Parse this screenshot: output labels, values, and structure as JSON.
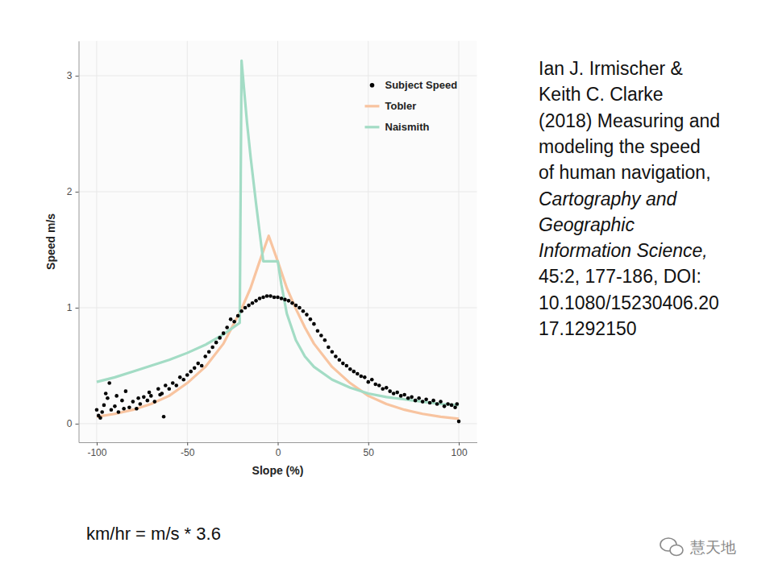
{
  "chart_data": {
    "type": "scatter",
    "x_label": "Slope (%)",
    "y_label": "Speed m/s",
    "xlim": [
      -110,
      110
    ],
    "ylim": [
      -0.16,
      3.3
    ],
    "xticks": [
      -100,
      -50,
      0,
      50,
      100
    ],
    "yticks": [
      0,
      1,
      2,
      3
    ],
    "grid": true,
    "legend": "top-right",
    "series": [
      {
        "name": "Subject Speed",
        "type": "scatter",
        "marker": "circle",
        "color": "#000000",
        "x": [
          -100,
          -99,
          -98,
          -97,
          -96,
          -95,
          -94,
          -93,
          -92,
          -90,
          -89,
          -88,
          -86,
          -85,
          -84,
          -82,
          -80,
          -78,
          -77,
          -76,
          -74,
          -72,
          -71,
          -70,
          -68,
          -66,
          -65,
          -64,
          -63,
          -62,
          -60,
          -58,
          -56,
          -54,
          -52,
          -50,
          -48,
          -46,
          -44,
          -42,
          -40,
          -38,
          -36,
          -34,
          -32,
          -30,
          -28,
          -26,
          -24,
          -22,
          -20,
          -18,
          -16,
          -14,
          -12,
          -10,
          -8,
          -6,
          -4,
          -2,
          0,
          2,
          4,
          6,
          8,
          10,
          12,
          14,
          16,
          18,
          20,
          22,
          24,
          26,
          28,
          30,
          32,
          34,
          36,
          38,
          40,
          42,
          44,
          46,
          48,
          50,
          52,
          54,
          56,
          58,
          60,
          62,
          64,
          66,
          68,
          70,
          72,
          74,
          76,
          78,
          80,
          82,
          84,
          86,
          88,
          90,
          92,
          94,
          96,
          98,
          99,
          100
        ],
        "values": [
          0.12,
          0.07,
          0.05,
          0.1,
          0.16,
          0.26,
          0.22,
          0.35,
          0.12,
          0.15,
          0.24,
          0.1,
          0.2,
          0.13,
          0.28,
          0.14,
          0.19,
          0.13,
          0.22,
          0.17,
          0.23,
          0.2,
          0.27,
          0.24,
          0.19,
          0.3,
          0.25,
          0.26,
          0.06,
          0.33,
          0.3,
          0.35,
          0.33,
          0.4,
          0.38,
          0.42,
          0.45,
          0.48,
          0.52,
          0.5,
          0.58,
          0.62,
          0.66,
          0.7,
          0.74,
          0.78,
          0.83,
          0.9,
          0.88,
          0.93,
          0.97,
          1.0,
          1.02,
          1.04,
          1.06,
          1.08,
          1.09,
          1.1,
          1.1,
          1.09,
          1.09,
          1.08,
          1.07,
          1.06,
          1.04,
          1.02,
          1.0,
          0.97,
          0.94,
          0.9,
          0.86,
          0.8,
          0.76,
          0.72,
          0.66,
          0.62,
          0.58,
          0.55,
          0.52,
          0.5,
          0.47,
          0.45,
          0.43,
          0.41,
          0.4,
          0.36,
          0.38,
          0.34,
          0.33,
          0.3,
          0.31,
          0.28,
          0.26,
          0.27,
          0.24,
          0.25,
          0.22,
          0.23,
          0.2,
          0.22,
          0.19,
          0.21,
          0.18,
          0.2,
          0.17,
          0.19,
          0.15,
          0.17,
          0.16,
          0.14,
          0.17,
          0.02
        ]
      },
      {
        "name": "Tobler",
        "type": "line",
        "line_style": "solid",
        "color": "#f8c4a0",
        "x": [
          -100,
          -90,
          -80,
          -70,
          -60,
          -50,
          -40,
          -30,
          -20,
          -15,
          -10,
          -5,
          0,
          5,
          10,
          15,
          20,
          30,
          40,
          50,
          60,
          70,
          80,
          90,
          100
        ],
        "values": [
          0.06,
          0.085,
          0.12,
          0.17,
          0.24,
          0.35,
          0.49,
          0.69,
          0.99,
          1.17,
          1.4,
          1.62,
          1.4,
          1.17,
          0.99,
          0.83,
          0.69,
          0.49,
          0.35,
          0.24,
          0.17,
          0.12,
          0.085,
          0.06,
          0.042
        ]
      },
      {
        "name": "Naismith",
        "type": "line",
        "line_style": "solid",
        "color": "#a3dcc5",
        "x": [
          -100,
          -90,
          -80,
          -70,
          -60,
          -50,
          -40,
          -30,
          -21,
          -20,
          -17,
          -15,
          -12,
          -10,
          -8,
          0,
          2,
          5,
          10,
          15,
          20,
          30,
          40,
          50,
          60,
          70,
          80,
          90,
          100
        ],
        "values": [
          0.36,
          0.4,
          0.45,
          0.5,
          0.55,
          0.61,
          0.68,
          0.77,
          0.87,
          3.13,
          2.6,
          2.3,
          1.9,
          1.65,
          1.4,
          1.4,
          1.2,
          0.95,
          0.72,
          0.58,
          0.49,
          0.38,
          0.31,
          0.26,
          0.23,
          0.21,
          0.19,
          0.17,
          0.16
        ]
      }
    ]
  },
  "citation": {
    "lines": [
      "Ian J. Irmischer &",
      "Keith C. Clarke",
      "(2018) Measuring and",
      "modeling the speed",
      "of human navigation,",
      "Cartography and",
      "Geographic",
      "Information Science,",
      "45:2, 177-186, DOI:",
      "10.1080/15230406.20",
      "17.1292150"
    ]
  },
  "footer": "km/hr = m/s * 3.6",
  "watermark": "慧天地"
}
